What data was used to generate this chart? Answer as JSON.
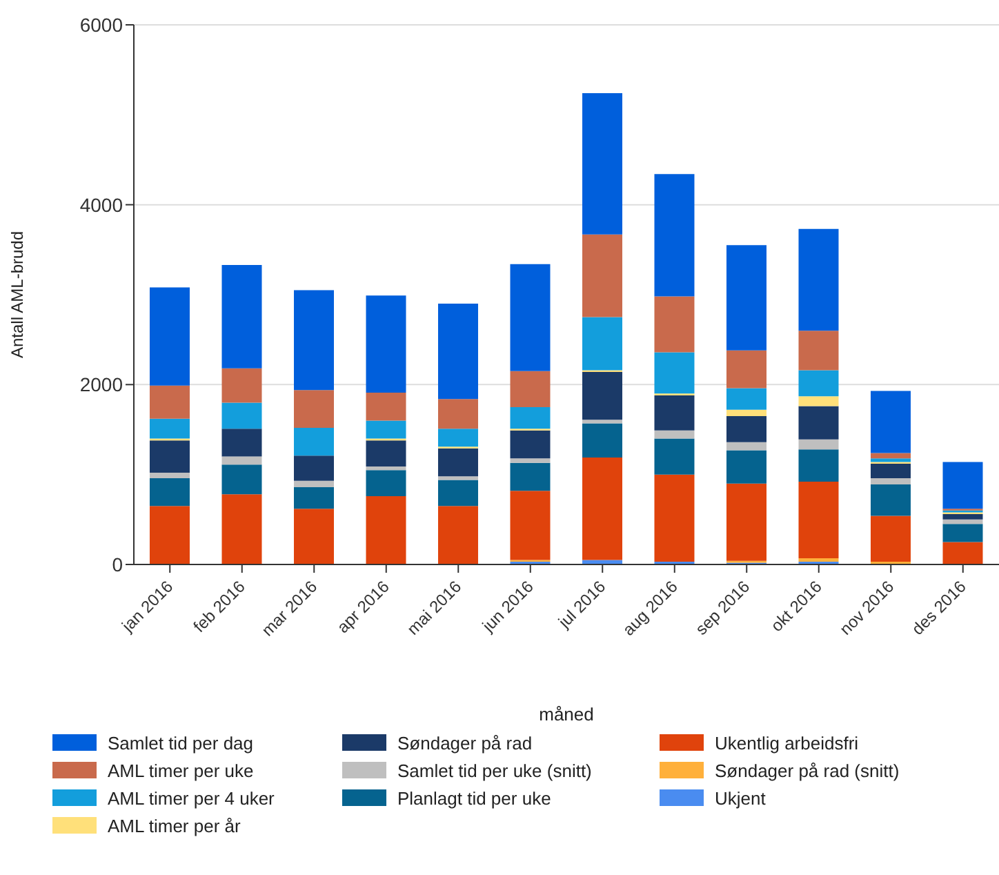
{
  "chart_data": {
    "type": "bar",
    "stacked": true,
    "xlabel": "måned",
    "ylabel": "Antall AML-brudd",
    "categories": [
      "jan 2016",
      "feb 2016",
      "mar 2016",
      "apr 2016",
      "mai 2016",
      "jun 2016",
      "jul 2016",
      "aug 2016",
      "sep 2016",
      "okt 2016",
      "nov 2016",
      "des 2016"
    ],
    "series": [
      {
        "name": "Ukjent",
        "color": "#4a8cf0",
        "values": [
          0,
          0,
          0,
          0,
          0,
          30,
          50,
          30,
          20,
          30,
          0,
          0
        ]
      },
      {
        "name": "Søndager på rad (snitt)",
        "color": "#ffb03b",
        "values": [
          0,
          0,
          0,
          0,
          0,
          20,
          0,
          0,
          20,
          40,
          30,
          0
        ]
      },
      {
        "name": "Ukentlig arbeidsfri",
        "color": "#e0430c",
        "values": [
          650,
          780,
          620,
          760,
          650,
          770,
          1140,
          970,
          860,
          850,
          510,
          250
        ]
      },
      {
        "name": "Planlagt tid per uke",
        "color": "#05638f",
        "values": [
          310,
          330,
          240,
          290,
          290,
          310,
          380,
          400,
          370,
          360,
          350,
          200
        ]
      },
      {
        "name": "Samlet tid per uke (snitt)",
        "color": "#bfbfbf",
        "values": [
          60,
          90,
          70,
          40,
          40,
          50,
          40,
          90,
          90,
          110,
          70,
          50
        ]
      },
      {
        "name": "Søndager på rad",
        "color": "#1b3a68",
        "values": [
          360,
          310,
          280,
          290,
          310,
          310,
          530,
          390,
          290,
          370,
          160,
          60
        ]
      },
      {
        "name": "AML timer per år",
        "color": "#ffe07a",
        "values": [
          20,
          0,
          0,
          20,
          20,
          20,
          20,
          20,
          70,
          110,
          20,
          20
        ]
      },
      {
        "name": "AML timer per 4 uker",
        "color": "#139edc",
        "values": [
          220,
          290,
          310,
          200,
          200,
          240,
          590,
          460,
          240,
          290,
          40,
          20
        ]
      },
      {
        "name": "AML timer per uke",
        "color": "#c96a4c",
        "values": [
          370,
          380,
          420,
          310,
          330,
          400,
          920,
          620,
          420,
          440,
          60,
          20
        ]
      },
      {
        "name": "Samlet tid per dag",
        "color": "#005fdc",
        "values": [
          1090,
          1150,
          1110,
          1080,
          1060,
          1190,
          1570,
          1360,
          1170,
          1130,
          690,
          520
        ]
      }
    ],
    "ylim": [
      0,
      6000
    ],
    "yticks": [
      0,
      2000,
      4000,
      6000
    ],
    "grid": "y",
    "legend": "bottom"
  }
}
